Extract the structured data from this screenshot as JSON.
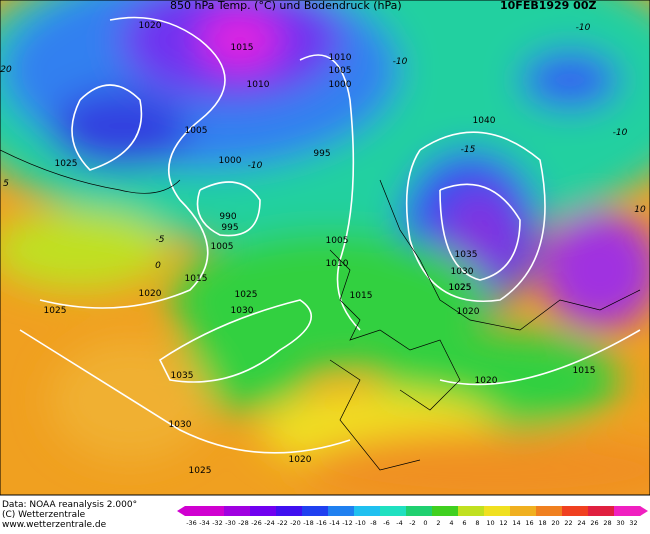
{
  "header": {
    "title": "850 hPa Temp. (°C) und Bodendruck (hPa)",
    "date": "10FEB1929 00Z"
  },
  "footer": {
    "source": "Data: NOAA reanalysis 2.000°",
    "copyright": "(C) Wetterzentrale",
    "url": "www.wetterzentrale.de"
  },
  "colorbar": {
    "labels": [
      "-36",
      "-34",
      "-32",
      "-30",
      "-28",
      "-26",
      "-24",
      "-22",
      "-20",
      "-18",
      "-16",
      "-14",
      "-12",
      "-10",
      "-8",
      "-6",
      "-4",
      "-2",
      "0",
      "2",
      "4",
      "6",
      "8",
      "10",
      "12",
      "14",
      "16",
      "18",
      "20",
      "22",
      "24",
      "26",
      "28",
      "30",
      "32"
    ]
  },
  "isobar_labels": [
    "1020",
    "1015",
    "1010",
    "1005",
    "1000",
    "995",
    "990",
    "995",
    "1005",
    "1015",
    "1020",
    "1025",
    "1030",
    "1025",
    "1025",
    "1035",
    "1030",
    "1025",
    "1020",
    "1005",
    "1010",
    "1015",
    "1010",
    "1005",
    "1000",
    "1040",
    "1035",
    "1030",
    "1025",
    "1020",
    "1020",
    "1015",
    "1025"
  ],
  "temp_labels": [
    "-10",
    "-10",
    "-10",
    "-15",
    "-5",
    "0",
    "5",
    "-10",
    "20",
    "10"
  ]
}
